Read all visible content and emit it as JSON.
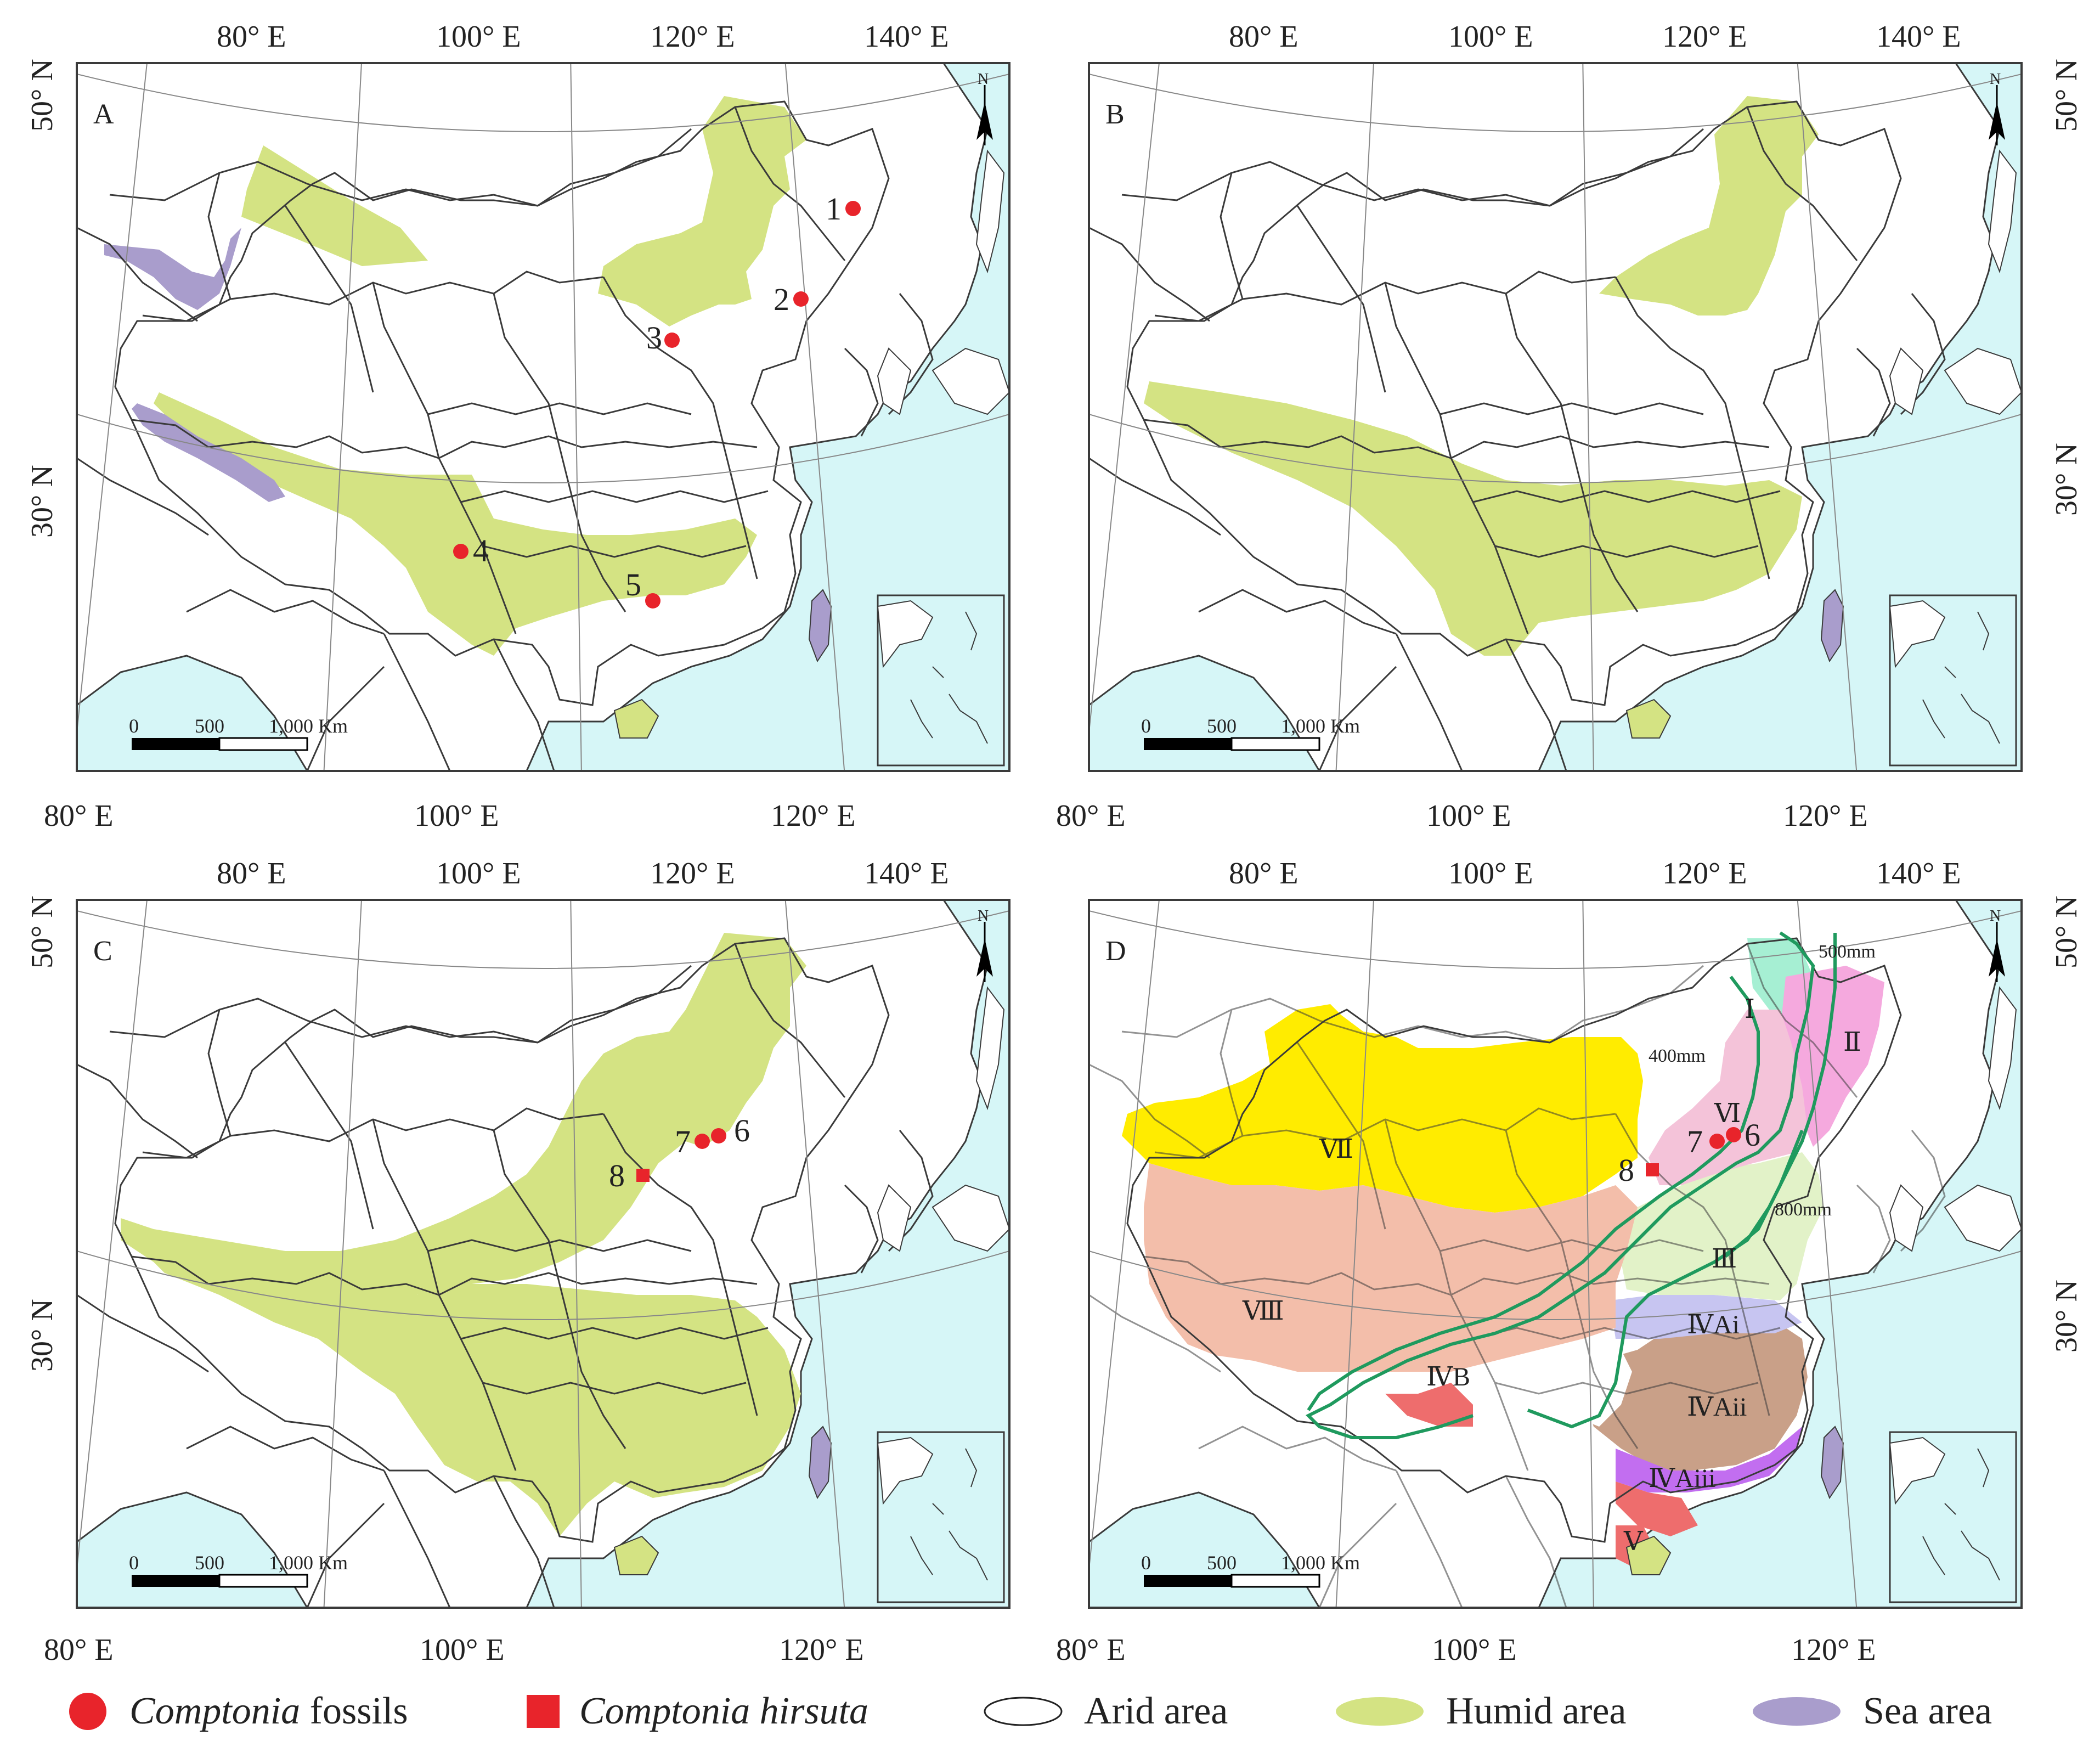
{
  "colors": {
    "sea": "#d6f6f7",
    "humid": "#d4e383",
    "sea_area": "#a99dcc",
    "fossil": "#e8242b",
    "boundary": "#3a3a3a",
    "grid": "#888888",
    "isohyet": "#1f9a5e",
    "zone_I": "#a6efd3",
    "zone_II": "#f5a9de",
    "zone_III": "#e2f2c8",
    "zone_IVAi": "#c7c5f1",
    "zone_IVAii": "#c9a088",
    "zone_IVAiii": "#c26ef0",
    "zone_IVB": "#ffffff",
    "zone_V": "#ee6d6d",
    "zone_VI": "#f4c3d9",
    "zone_VII": "#ffec00",
    "zone_VIII": "#f3beaa"
  },
  "grid_labels": {
    "top": [
      "80° E",
      "100° E",
      "120° E",
      "140° E"
    ],
    "bottom": [
      "80° E",
      "100° E",
      "120° E"
    ],
    "lat_50": "50° N",
    "lat_30": "30° N"
  },
  "panels": [
    {
      "letter": "A",
      "humid_area": true,
      "sea_area": true,
      "sites": [
        {
          "label": "1",
          "kind": "fossil"
        },
        {
          "label": "2",
          "kind": "fossil"
        },
        {
          "label": "3",
          "kind": "fossil"
        },
        {
          "label": "4",
          "kind": "fossil"
        },
        {
          "label": "5",
          "kind": "fossil"
        }
      ]
    },
    {
      "letter": "B",
      "humid_area": true,
      "sea_area": true,
      "sites": []
    },
    {
      "letter": "C",
      "humid_area": true,
      "sea_area": true,
      "sites": [
        {
          "label": "7",
          "kind": "fossil"
        },
        {
          "label": "6",
          "kind": "fossil"
        },
        {
          "label": "8",
          "kind": "hirsuta"
        }
      ]
    },
    {
      "letter": "D",
      "humid_area": false,
      "sea_area": true,
      "sites": [
        {
          "label": "7",
          "kind": "fossil"
        },
        {
          "label": "6",
          "kind": "fossil"
        },
        {
          "label": "8",
          "kind": "hirsuta"
        }
      ],
      "zones": [
        "Ⅰ",
        "Ⅱ",
        "Ⅲ",
        "ⅣAi",
        "ⅣAii",
        "ⅣAiii",
        "ⅣB",
        "Ⅴ",
        "Ⅵ",
        "Ⅶ",
        "Ⅷ"
      ],
      "isohyets": [
        "500mm",
        "400mm",
        "800mm"
      ]
    }
  ],
  "scale_bar": {
    "ticks": [
      "0",
      "500",
      "1,000 Km"
    ]
  },
  "north_label": "N",
  "legend": [
    {
      "key": "fossils",
      "italic": "Comptonia",
      "text": " fossils"
    },
    {
      "key": "hirsuta",
      "italic": "Comptonia hirsuta",
      "text": ""
    },
    {
      "key": "arid",
      "italic": "",
      "text": "Arid area"
    },
    {
      "key": "humid",
      "italic": "",
      "text": "Humid area"
    },
    {
      "key": "sea",
      "italic": "",
      "text": "Sea area"
    }
  ]
}
